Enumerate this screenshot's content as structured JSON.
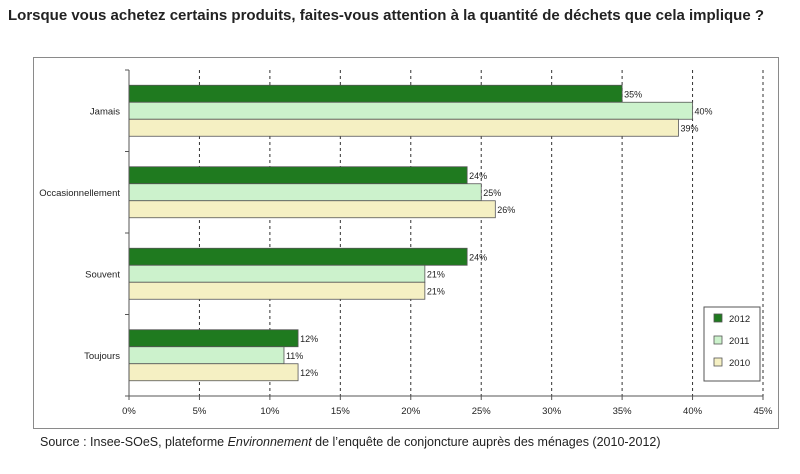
{
  "title": "Lorsque vous achetez certains produits, faites-vous attention à la quantité de déchets que cela implique ?",
  "source": {
    "prefix": "Source : Insee-SOeS, plateforme ",
    "italic": "Environnement",
    "suffix": " de l’enquête de conjoncture auprès des ménages (2010-2012)"
  },
  "chart_data": {
    "type": "bar",
    "orientation": "horizontal",
    "categories": [
      "Jamais",
      "Occasionnellement",
      "Souvent",
      "Toujours"
    ],
    "series": [
      {
        "name": "2012",
        "values": [
          35,
          24,
          24,
          12
        ],
        "color": "#1f7a1f"
      },
      {
        "name": "2011",
        "values": [
          40,
          25,
          21,
          11
        ],
        "color": "#ccf2cc"
      },
      {
        "name": "2010",
        "values": [
          39,
          26,
          21,
          12
        ],
        "color": "#f5f0c3"
      }
    ],
    "value_suffix": "%",
    "xlim": [
      0,
      45
    ],
    "xticks": [
      0,
      5,
      10,
      15,
      20,
      25,
      30,
      35,
      40,
      45
    ],
    "xtick_labels": [
      "0%",
      "5%",
      "10%",
      "15%",
      "20%",
      "25%",
      "30%",
      "35%",
      "40%",
      "45%"
    ],
    "grid": "vertical dashed",
    "legend_position": "bottom-right"
  }
}
